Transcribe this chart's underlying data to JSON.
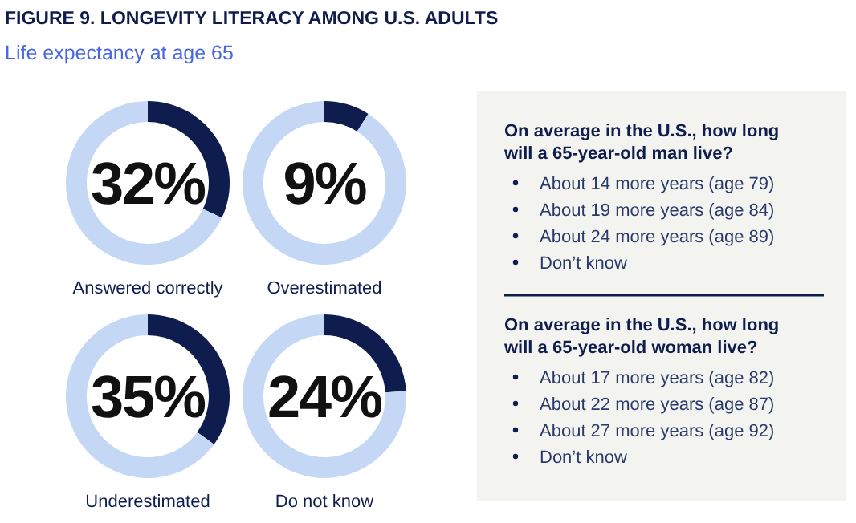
{
  "chart_data": [
    {
      "type": "other",
      "title": "FIGURE 9. LONGEVITY LITERACY AMONG U.S. ADULTS",
      "subtitle": "Life expectancy at age 65"
    },
    {
      "type": "donut",
      "title": "Answered correctly",
      "categories": [
        null,
        null
      ],
      "values": [
        32,
        68
      ],
      "colors": [
        "#0f1d4e",
        "#c4d8f6"
      ],
      "annotations": [
        "32%"
      ]
    },
    {
      "type": "donut",
      "title": "Overestimated",
      "categories": [
        null,
        null
      ],
      "values": [
        9,
        91
      ],
      "colors": [
        "#0f1d4e",
        "#c4d8f6"
      ],
      "annotations": [
        "9%"
      ]
    },
    {
      "type": "donut",
      "title": "Underestimated",
      "categories": [
        null,
        null
      ],
      "values": [
        35,
        65
      ],
      "colors": [
        "#0f1d4e",
        "#c4d8f6"
      ],
      "annotations": [
        "35%"
      ]
    },
    {
      "type": "donut",
      "title": "Do not know",
      "categories": [
        null,
        null
      ],
      "values": [
        24,
        76
      ],
      "colors": [
        "#0f1d4e",
        "#c4d8f6"
      ],
      "annotations": [
        "24%"
      ]
    },
    {
      "type": "other",
      "title": "On average in the U.S., how long will a 65-year-old man live?",
      "annotations": [
        "About 14 more years (age 79)",
        "About 19 more years (age 84)",
        "About 24 more years (age 89)",
        "Don’t know"
      ]
    },
    {
      "type": "other",
      "title": "On average in the U.S., how long will a 65-year-old woman live?",
      "annotations": [
        "About 17 more years (age 82)",
        "About 22 more years (age 87)",
        "About 27 more years (age 92)",
        "Don’t know"
      ]
    }
  ]
}
